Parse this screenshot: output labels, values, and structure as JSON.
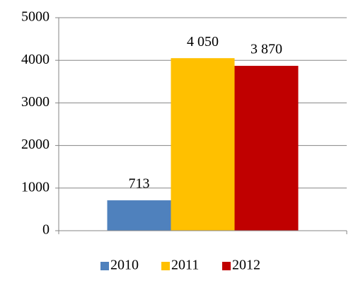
{
  "chart_data": {
    "type": "bar",
    "categories": [
      null
    ],
    "series": [
      {
        "name": "2010",
        "color": "#4f81bd",
        "values": [
          713
        ]
      },
      {
        "name": "2011",
        "color": "#ffc000",
        "values": [
          4050
        ],
        "value_labels": [
          "4 050"
        ]
      },
      {
        "name": "2012",
        "color": "#c00000",
        "values": [
          3870
        ],
        "value_labels": [
          "3 870"
        ]
      }
    ],
    "ylim": [
      0,
      5000
    ],
    "yticks": [
      0,
      1000,
      2000,
      3000,
      4000,
      5000
    ],
    "grid": true,
    "legend": "bottom"
  }
}
